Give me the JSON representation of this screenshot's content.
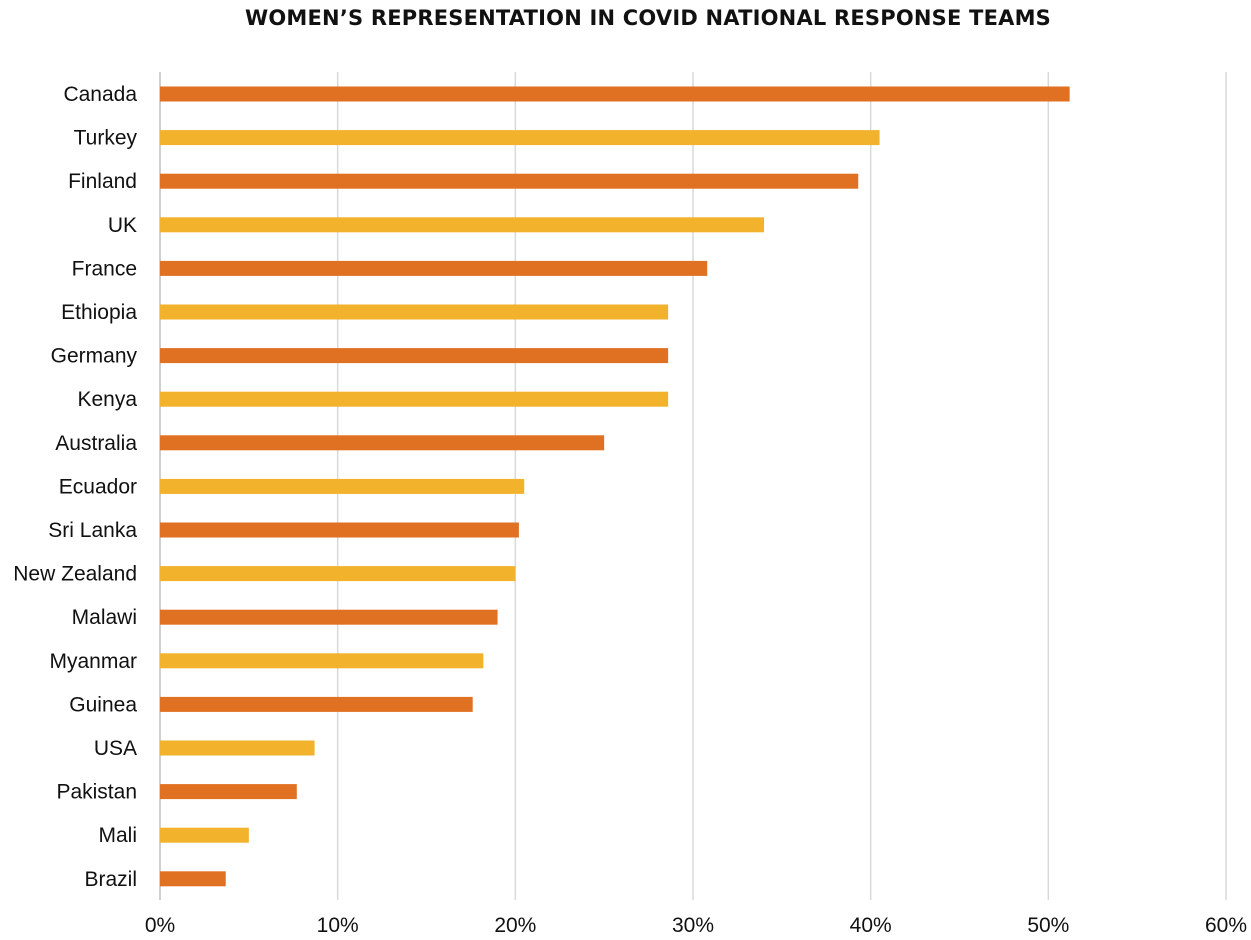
{
  "chart_data": {
    "type": "bar",
    "orientation": "horizontal",
    "title": "WOMEN’S REPRESENTATION IN COVID NATIONAL RESPONSE TEAMS",
    "categories": [
      "Canada",
      "Turkey",
      "Finland",
      "UK",
      "France",
      "Ethiopia",
      "Germany",
      "Kenya",
      "Australia",
      "Ecuador",
      "Sri Lanka",
      "New Zealand",
      "Malawi",
      "Myanmar",
      "Guinea",
      "USA",
      "Pakistan",
      "Mali",
      "Brazil"
    ],
    "values": [
      51.2,
      40.5,
      39.3,
      34.0,
      30.8,
      28.6,
      28.6,
      28.6,
      25.0,
      20.5,
      20.2,
      20.0,
      19.0,
      18.2,
      17.6,
      8.7,
      7.7,
      5.0,
      3.7
    ],
    "bar_colors": [
      "#e07022",
      "#f2b22c",
      "#e07022",
      "#f2b22c",
      "#e07022",
      "#f2b22c",
      "#e07022",
      "#f2b22c",
      "#e07022",
      "#f2b22c",
      "#e07022",
      "#f2b22c",
      "#e07022",
      "#f2b22c",
      "#e07022",
      "#f2b22c",
      "#e07022",
      "#f2b22c",
      "#e07022"
    ],
    "xlim": [
      0,
      60
    ],
    "xticks": [
      0,
      10,
      20,
      30,
      40,
      50,
      60
    ],
    "xtick_labels": [
      "0%",
      "10%",
      "20%",
      "30%",
      "40%",
      "50%",
      "60%"
    ],
    "xlabel": "",
    "ylabel": "",
    "grid": "vertical",
    "grid_color": "#d9d9d9",
    "legend": "none"
  }
}
